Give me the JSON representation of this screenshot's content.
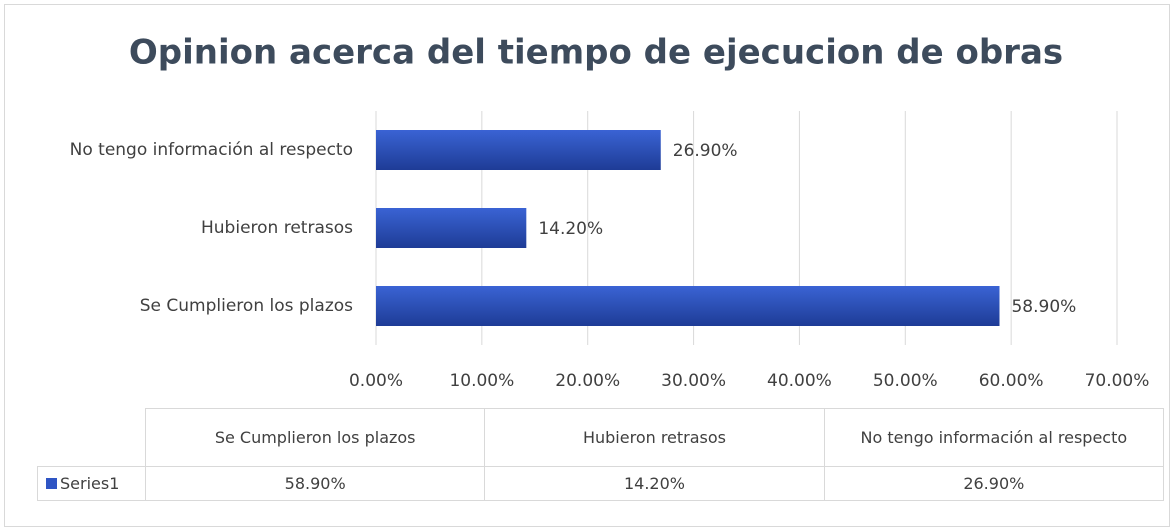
{
  "chart_data": {
    "type": "bar",
    "orientation": "horizontal",
    "title": "Opinion acerca del tiempo de ejecucion de obras",
    "categories": [
      "Se Cumplieron los plazos",
      "Hubieron retrasos",
      "No tengo información al respecto"
    ],
    "series": [
      {
        "name": "Series1",
        "color": "#2f55c4",
        "values": [
          58.9,
          14.2,
          26.9
        ],
        "value_labels": [
          "58.90%",
          "14.20%",
          "26.90%"
        ]
      }
    ],
    "xlim": [
      0,
      70
    ],
    "xticks": [
      {
        "value": 0,
        "label": "0.00%"
      },
      {
        "value": 10,
        "label": "10.00%"
      },
      {
        "value": 20,
        "label": "20.00%"
      },
      {
        "value": 30,
        "label": "30.00%"
      },
      {
        "value": 40,
        "label": "40.00%"
      },
      {
        "value": 50,
        "label": "50.00%"
      },
      {
        "value": 60,
        "label": "60.00%"
      },
      {
        "value": 70,
        "label": "70.00%"
      }
    ],
    "grid": true,
    "data_table": true
  }
}
